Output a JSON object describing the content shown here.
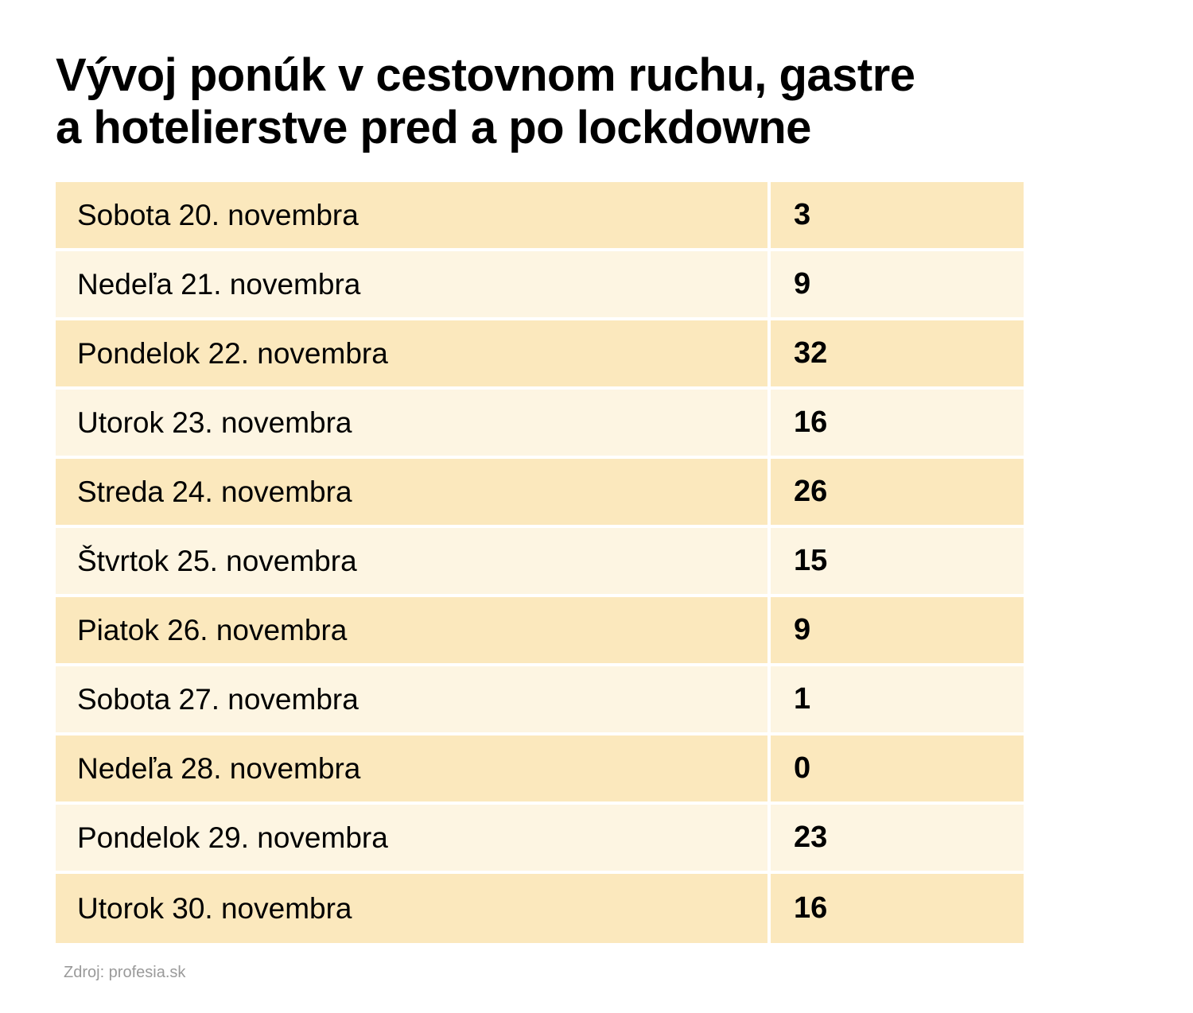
{
  "title_lines": [
    "Vývoj ponúk v cestovnom ruchu, gastre",
    "a hotelierstve pred a po lockdowne"
  ],
  "colors": {
    "row_dark": "#fbe8bd",
    "row_light": "#fdf5e2"
  },
  "chart_data": {
    "type": "table",
    "title": "Vývoj ponúk v cestovnom ruchu, gastre a hotelierstve pred a po lockdowne",
    "rows": [
      {
        "label": "Sobota 20. novembra",
        "value": "3"
      },
      {
        "label": "Nedeľa 21. novembra",
        "value": "9"
      },
      {
        "label": "Pondelok 22. novembra",
        "value": "32"
      },
      {
        "label": "Utorok 23. novembra",
        "value": "16"
      },
      {
        "label": "Streda 24. novembra",
        "value": "26"
      },
      {
        "label": "Štvrtok 25. novembra",
        "value": "15"
      },
      {
        "label": "Piatok 26. novembra",
        "value": "9"
      },
      {
        "label": "Sobota 27. novembra",
        "value": "1"
      },
      {
        "label": "Nedeľa 28. novembra",
        "value": "0"
      },
      {
        "label": "Pondelok 29. novembra",
        "value": "23"
      },
      {
        "label": "Utorok 30. novembra",
        "value": "16"
      }
    ]
  },
  "source": "Zdroj: profesia.sk"
}
